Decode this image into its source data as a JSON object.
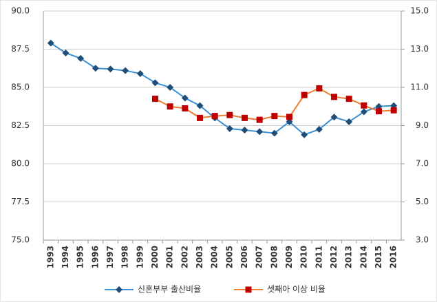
{
  "chart_data": {
    "type": "line",
    "categories": [
      "1993",
      "1994",
      "1995",
      "1996",
      "1997",
      "1998",
      "1999",
      "2000",
      "2001",
      "2002",
      "2003",
      "2004",
      "2005",
      "2006",
      "2007",
      "2008",
      "2009",
      "2010",
      "2011",
      "2012",
      "2013",
      "2014",
      "2015",
      "2016"
    ],
    "series": [
      {
        "name": "신혼부부 출산비율",
        "color": "#3b8fd4",
        "marker_color": "#1f4e79",
        "marker": "diamond",
        "axis": "y",
        "values": [
          87.9,
          87.25,
          86.9,
          86.25,
          86.2,
          86.1,
          85.9,
          85.3,
          85.0,
          84.3,
          83.8,
          83.0,
          82.3,
          82.2,
          82.1,
          82.0,
          82.75,
          81.9,
          82.25,
          83.05,
          82.75,
          83.4,
          83.75,
          83.8
        ]
      },
      {
        "name": "셋째아 이상 비율",
        "color": "#ed7d31",
        "marker_color": "#c00000",
        "marker": "square",
        "axis": "y2",
        "values": [
          null,
          null,
          null,
          null,
          null,
          null,
          null,
          10.4,
          10.0,
          9.9,
          9.4,
          9.5,
          9.55,
          9.4,
          9.3,
          9.5,
          9.45,
          10.6,
          10.95,
          10.5,
          10.4,
          10.05,
          9.75,
          9.8
        ]
      }
    ],
    "ylim": [
      75,
      90
    ],
    "yticks": [
      {
        "value": 75,
        "label": "75.0"
      },
      {
        "value": 77.5,
        "label": "77.5"
      },
      {
        "value": 80,
        "label": "80.0"
      },
      {
        "value": 82.5,
        "label": "82.5"
      },
      {
        "value": 85,
        "label": "85.0"
      },
      {
        "value": 87.5,
        "label": "87.5"
      },
      {
        "value": 90,
        "label": "90.0"
      }
    ],
    "y2lim": [
      3,
      15
    ],
    "y2ticks": [
      {
        "value": 3,
        "label": "3.0"
      },
      {
        "value": 5,
        "label": "5.0"
      },
      {
        "value": 7,
        "label": "7.0"
      },
      {
        "value": 9,
        "label": "9.0"
      },
      {
        "value": 11,
        "label": "11.0"
      },
      {
        "value": 13,
        "label": "13.0"
      },
      {
        "value": 15,
        "label": "15.0"
      }
    ],
    "grid": true
  }
}
